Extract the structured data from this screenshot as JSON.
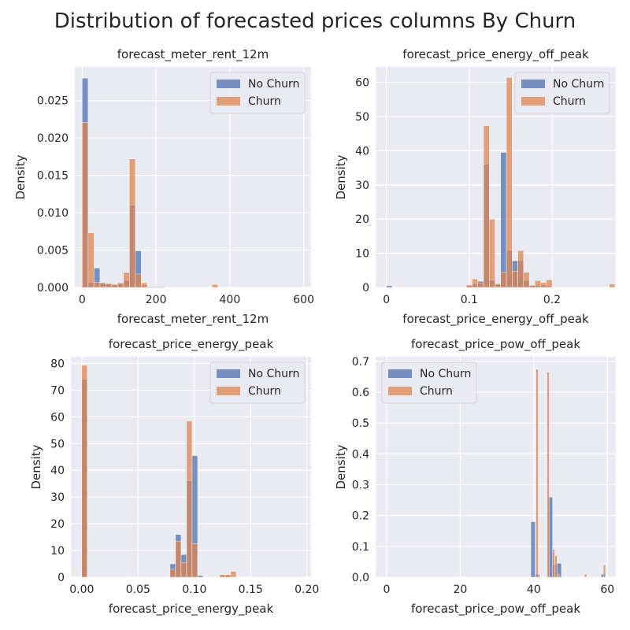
{
  "figure": {
    "title": "Distribution of forecasted prices columns By Churn",
    "background": "#ffffff",
    "axes_background": "#EAEAF2",
    "grid_color": "#ffffff"
  },
  "colors": {
    "No Churn": "#4C72B0",
    "Churn": "#DD8452"
  },
  "chart_data": [
    {
      "type": "bar",
      "title": "forecast_meter_rent_12m",
      "xlabel": "forecast_meter_rent_12m",
      "ylabel": "Density",
      "xlim": [
        -20,
        620
      ],
      "ylim": [
        0,
        0.0295
      ],
      "xticks": [
        0,
        200,
        400,
        600
      ],
      "yticks": [
        0.0,
        0.005,
        0.01,
        0.015,
        0.02,
        0.025
      ],
      "ytick_labels": [
        "0.000",
        "0.005",
        "0.010",
        "0.015",
        "0.020",
        "0.025"
      ],
      "legend": {
        "position": "top-right",
        "entries": [
          "No Churn",
          "Churn"
        ]
      },
      "series": [
        {
          "name": "No Churn",
          "bin_width": 16,
          "bins": [
            [
              0,
              0.028
            ],
            [
              16,
              0.0006
            ],
            [
              32,
              0.0026
            ],
            [
              48,
              0.0006
            ],
            [
              64,
              0.0005
            ],
            [
              80,
              0.0004
            ],
            [
              96,
              0.0005
            ],
            [
              112,
              0.0009
            ],
            [
              128,
              0.011
            ],
            [
              144,
              0.0049
            ],
            [
              160,
              0.0003
            ],
            [
              176,
              0.0001
            ],
            [
              192,
              0.0001
            ],
            [
              208,
              0.0001
            ]
          ]
        },
        {
          "name": "Churn",
          "bin_width": 16,
          "bins": [
            [
              0,
              0.0221
            ],
            [
              16,
              0.0073
            ],
            [
              32,
              0.0007
            ],
            [
              48,
              0.0006
            ],
            [
              64,
              0.0005
            ],
            [
              80,
              0.0004
            ],
            [
              96,
              0.0006
            ],
            [
              112,
              0.002
            ],
            [
              128,
              0.0172
            ],
            [
              144,
              0.0018
            ],
            [
              160,
              0.0006
            ],
            [
              352,
              0.0004
            ]
          ]
        }
      ]
    },
    {
      "type": "bar",
      "title": "forecast_price_energy_off_peak",
      "xlabel": "forecast_price_energy_off_peak",
      "ylabel": "Density",
      "xlim": [
        -0.013,
        0.277
      ],
      "ylim": [
        0,
        64.5
      ],
      "xticks": [
        0.0,
        0.1,
        0.2
      ],
      "yticks": [
        0,
        10,
        20,
        30,
        40,
        50,
        60
      ],
      "ytick_labels": [
        "0",
        "10",
        "20",
        "30",
        "40",
        "50",
        "60"
      ],
      "legend": {
        "position": "top-right",
        "entries": [
          "No Churn",
          "Churn"
        ]
      },
      "series": [
        {
          "name": "No Churn",
          "bin_width": 0.0069,
          "bins": [
            [
              0.0,
              0.5
            ],
            [
              0.0966,
              0.5
            ],
            [
              0.1035,
              1.0
            ],
            [
              0.1104,
              1.8
            ],
            [
              0.1173,
              36
            ],
            [
              0.1242,
              2.0
            ],
            [
              0.1311,
              0.8
            ],
            [
              0.138,
              39.5
            ],
            [
              0.1449,
              10.8
            ],
            [
              0.1518,
              7.8
            ],
            [
              0.1587,
              7.8
            ],
            [
              0.1656,
              2.0
            ],
            [
              0.1725,
              0.6
            ],
            [
              0.1794,
              0.6
            ],
            [
              0.1863,
              0.6
            ],
            [
              0.1932,
              0.4
            ]
          ]
        },
        {
          "name": "Churn",
          "bin_width": 0.0069,
          "bins": [
            [
              0.0966,
              0.7
            ],
            [
              0.1035,
              2.5
            ],
            [
              0.1104,
              1.3
            ],
            [
              0.1173,
              47.3
            ],
            [
              0.1242,
              20.0
            ],
            [
              0.1311,
              1.1
            ],
            [
              0.138,
              4.5
            ],
            [
              0.1449,
              61.4
            ],
            [
              0.1518,
              4.8
            ],
            [
              0.1587,
              10.8
            ],
            [
              0.1656,
              4.4
            ],
            [
              0.1725,
              0.6
            ],
            [
              0.1794,
              2.0
            ],
            [
              0.1863,
              1.4
            ],
            [
              0.1932,
              2.2
            ],
            [
              0.2691,
              1.0
            ]
          ]
        }
      ]
    },
    {
      "type": "bar",
      "title": "forecast_price_energy_peak",
      "xlabel": "forecast_price_energy_peak",
      "ylabel": "Density",
      "xlim": [
        -0.0097,
        0.2037
      ],
      "ylim": [
        0,
        82.5
      ],
      "xticks": [
        0.0,
        0.05,
        0.1,
        0.15,
        0.2
      ],
      "xtick_labels": [
        "0.00",
        "0.05",
        "0.10",
        "0.15",
        "0.20"
      ],
      "yticks": [
        0,
        10,
        20,
        30,
        40,
        50,
        60,
        70,
        80
      ],
      "ytick_labels": [
        "0",
        "10",
        "20",
        "30",
        "40",
        "50",
        "60",
        "70",
        "80"
      ],
      "legend": {
        "position": "top-right",
        "entries": [
          "No Churn",
          "Churn"
        ]
      },
      "series": [
        {
          "name": "No Churn",
          "bin_width": 0.0049,
          "bins": [
            [
              0.0,
              74
            ],
            [
              0.0784,
              5.0
            ],
            [
              0.0833,
              16.0
            ],
            [
              0.0882,
              8.5
            ],
            [
              0.0931,
              36.0
            ],
            [
              0.098,
              45.5
            ],
            [
              0.1029,
              0.6
            ],
            [
              0.1225,
              0.6
            ],
            [
              0.1274,
              0.6
            ]
          ]
        },
        {
          "name": "Churn",
          "bin_width": 0.0049,
          "bins": [
            [
              0.0,
              79.3
            ],
            [
              0.0784,
              3.0
            ],
            [
              0.0833,
              13.5
            ],
            [
              0.0882,
              5.5
            ],
            [
              0.0931,
              58.5
            ],
            [
              0.098,
              12.6
            ],
            [
              0.1225,
              1.0
            ],
            [
              0.1274,
              1.0
            ],
            [
              0.1323,
              2.2
            ]
          ]
        }
      ]
    },
    {
      "type": "bar",
      "title": "forecast_price_pow_off_peak",
      "xlabel": "forecast_price_pow_off_peak",
      "ylabel": "Density",
      "xlim": [
        -3.0,
        62.3
      ],
      "ylim": [
        0,
        0.715
      ],
      "xticks": [
        0,
        20,
        40,
        60
      ],
      "yticks": [
        0.0,
        0.1,
        0.2,
        0.3,
        0.4,
        0.5,
        0.6,
        0.7
      ],
      "ytick_labels": [
        "0.0",
        "0.1",
        "0.2",
        "0.3",
        "0.4",
        "0.5",
        "0.6",
        "0.7"
      ],
      "legend": {
        "position": "top-left",
        "entries": [
          "No Churn",
          "Churn"
        ]
      },
      "series": [
        {
          "name": "No Churn",
          "bin_width": 1.2,
          "bins": [
            [
              39.2,
              0.18
            ],
            [
              40.4,
              0.01
            ],
            [
              43.9,
              0.26
            ],
            [
              45.1,
              0.04
            ],
            [
              46.3,
              0.045
            ],
            [
              58.3,
              0.01
            ]
          ]
        },
        {
          "name": "Churn",
          "bin_width": 0.6,
          "bins": [
            [
              40.6,
              0.675
            ],
            [
              43.6,
              0.665
            ],
            [
              45.1,
              0.09
            ],
            [
              45.7,
              0.07
            ],
            [
              46.3,
              0.01
            ],
            [
              53.8,
              0.01
            ],
            [
              58.9,
              0.04
            ]
          ]
        }
      ]
    }
  ]
}
